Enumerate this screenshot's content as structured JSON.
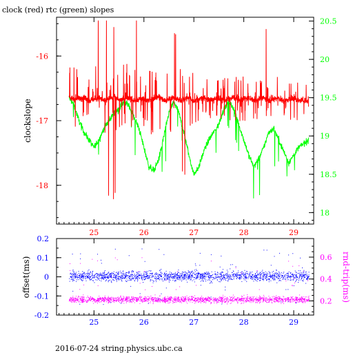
{
  "title": "clock (red) rtc (green) slopes",
  "footer": "2016-07-24 string.physics.ubc.ca",
  "colors": {
    "clock": "#ff0000",
    "rtc": "#00ff00",
    "offset": "#0000ff",
    "rndtrip": "#ff00ff",
    "axis_left_top": "#ff0000",
    "axis_right_top": "#00ff00",
    "axis_left_bottom": "#0000ff",
    "axis_right_bottom": "#ff00ff",
    "axis_x": "#0000ff"
  },
  "chart_data": [
    {
      "type": "line",
      "title": "clock (red) rtc (green) slopes",
      "xlabel": "",
      "ylabel": "clockslope",
      "y2label": "",
      "xlim": [
        24.25,
        29.4
      ],
      "ylim": [
        -18.6,
        -15.4
      ],
      "y2lim": [
        17.85,
        20.55
      ],
      "xticks": [
        "25",
        "26",
        "27",
        "28",
        "29"
      ],
      "yticks": [
        "-16",
        "-17",
        "-18"
      ],
      "y2ticks": [
        "20.5",
        "20",
        "19.5",
        "19",
        "18.5",
        "18"
      ],
      "grid": false,
      "series": [
        {
          "name": "clock",
          "axis": "left",
          "color": "#ff0000",
          "x": [
            24.5,
            24.6,
            24.7,
            24.8,
            24.9,
            25.0,
            25.1,
            25.2,
            25.3,
            25.4,
            25.5,
            25.6,
            25.7,
            25.8,
            25.9,
            26.0,
            26.1,
            26.2,
            26.3,
            26.4,
            26.5,
            26.6,
            26.7,
            26.8,
            26.9,
            27.0,
            27.1,
            27.2,
            27.3,
            27.4,
            27.5,
            27.6,
            27.7,
            27.8,
            27.9,
            28.0,
            28.1,
            28.2,
            28.3,
            28.4,
            28.5,
            28.6,
            28.7,
            28.8,
            28.9,
            29.0,
            29.1,
            29.2,
            29.3
          ],
          "values": [
            -16.62,
            -16.68,
            -16.66,
            -16.63,
            -16.69,
            -16.67,
            -16.64,
            -16.7,
            -16.66,
            -16.63,
            -16.68,
            -16.66,
            -16.64,
            -16.69,
            -16.67,
            -16.65,
            -16.7,
            -16.66,
            -16.63,
            -16.68,
            -16.66,
            -16.64,
            -16.69,
            -16.67,
            -16.65,
            -16.7,
            -16.66,
            -16.64,
            -16.68,
            -16.67,
            -16.65,
            -16.69,
            -16.66,
            -16.64,
            -16.68,
            -16.66,
            -16.65,
            -16.69,
            -16.67,
            -16.65,
            -16.68,
            -16.66,
            -16.65,
            -16.7,
            -16.67,
            -16.66,
            -16.69,
            -16.68,
            -16.7
          ]
        },
        {
          "name": "rtc",
          "axis": "right",
          "color": "#00ff00",
          "x": [
            24.5,
            24.6,
            24.7,
            24.8,
            24.9,
            25.0,
            25.1,
            25.2,
            25.3,
            25.4,
            25.5,
            25.6,
            25.7,
            25.8,
            25.9,
            26.0,
            26.1,
            26.2,
            26.3,
            26.4,
            26.5,
            26.6,
            26.7,
            26.8,
            26.9,
            27.0,
            27.1,
            27.2,
            27.3,
            27.4,
            27.5,
            27.6,
            27.7,
            27.8,
            27.9,
            28.0,
            28.1,
            28.2,
            28.3,
            28.4,
            28.5,
            28.6,
            28.7,
            28.8,
            28.9,
            29.0,
            29.1,
            29.2,
            29.3
          ],
          "values": [
            19.5,
            19.4,
            19.2,
            19.05,
            18.95,
            18.85,
            18.95,
            19.1,
            19.2,
            19.3,
            19.35,
            19.45,
            19.4,
            19.25,
            19.1,
            18.85,
            18.6,
            18.55,
            18.7,
            19.0,
            19.3,
            19.45,
            19.3,
            19.05,
            18.75,
            18.5,
            18.6,
            18.8,
            18.95,
            19.05,
            19.15,
            19.35,
            19.45,
            19.35,
            19.15,
            18.95,
            18.75,
            18.6,
            18.7,
            18.85,
            19.05,
            19.1,
            18.95,
            18.8,
            18.65,
            18.75,
            18.85,
            18.9,
            18.95
          ]
        }
      ],
      "spikes_note": ""
    },
    {
      "type": "scatter",
      "title": "",
      "xlabel": "",
      "ylabel": "offset(ms)",
      "y2label": "rnd-trip(ms)",
      "xlim": [
        24.25,
        29.4
      ],
      "ylim": [
        -0.2,
        0.2
      ],
      "y2lim": [
        0.07,
        0.77
      ],
      "xticks": [
        "25",
        "26",
        "27",
        "28",
        "29"
      ],
      "yticks": [
        "0.2",
        "0.1",
        "0",
        "-0.1",
        "-0.2"
      ],
      "y2ticks": [
        "0.6",
        "0.4",
        "0.2"
      ],
      "grid": false,
      "series": [
        {
          "name": "offset",
          "axis": "left",
          "color": "#0000ff",
          "x": [
            24.5,
            24.75,
            25.0,
            25.25,
            25.5,
            25.75,
            26.0,
            26.25,
            26.5,
            26.75,
            27.0,
            27.25,
            27.5,
            27.75,
            28.0,
            28.25,
            28.5,
            28.75,
            29.0,
            29.25
          ],
          "values": [
            0.01,
            0.0,
            0.01,
            0.0,
            0.01,
            0.0,
            0.0,
            0.0,
            0.0,
            0.01,
            0.0,
            0.0,
            0.01,
            0.0,
            0.0,
            0.01,
            0.0,
            0.0,
            0.01,
            0.0
          ]
        },
        {
          "name": "rnd-trip",
          "axis": "right",
          "color": "#ff00ff",
          "x": [
            24.5,
            24.75,
            25.0,
            25.25,
            25.5,
            25.75,
            26.0,
            26.25,
            26.5,
            26.75,
            27.0,
            27.25,
            27.5,
            27.75,
            28.0,
            28.25,
            28.5,
            28.75,
            29.0,
            29.25
          ],
          "values": [
            0.21,
            0.21,
            0.22,
            0.21,
            0.21,
            0.22,
            0.21,
            0.21,
            0.21,
            0.22,
            0.21,
            0.21,
            0.22,
            0.21,
            0.21,
            0.21,
            0.22,
            0.21,
            0.21,
            0.21
          ]
        }
      ]
    }
  ]
}
